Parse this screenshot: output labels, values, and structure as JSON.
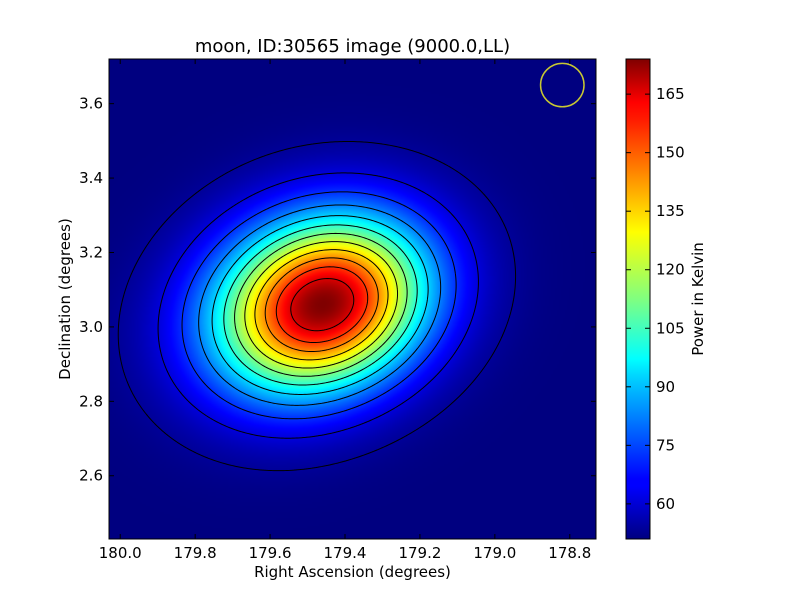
{
  "chart_data": {
    "type": "heatmap",
    "title": "moon, ID:30565 image (9000.0,LL)",
    "xlabel": "Right Ascension (degrees)",
    "ylabel": "Declination (degrees)",
    "colorbar_label": "Power in Kelvin",
    "x_range": [
      180.03,
      178.73
    ],
    "y_range": [
      2.43,
      3.72
    ],
    "x_ticks": [
      {
        "value": 180.0,
        "label": "180.0"
      },
      {
        "value": 179.8,
        "label": "179.8"
      },
      {
        "value": 179.6,
        "label": "179.6"
      },
      {
        "value": 179.4,
        "label": "179.4"
      },
      {
        "value": 179.2,
        "label": "179.2"
      },
      {
        "value": 179.0,
        "label": "179.0"
      },
      {
        "value": 178.8,
        "label": "178.8"
      }
    ],
    "y_ticks": [
      {
        "value": 2.6,
        "label": "2.6"
      },
      {
        "value": 2.8,
        "label": "2.8"
      },
      {
        "value": 3.0,
        "label": "3.0"
      },
      {
        "value": 3.2,
        "label": "3.2"
      },
      {
        "value": 3.4,
        "label": "3.4"
      },
      {
        "value": 3.6,
        "label": "3.6"
      }
    ],
    "colorbar_range": [
      51,
      174
    ],
    "colorbar_ticks": [
      {
        "value": 60,
        "label": "60"
      },
      {
        "value": 75,
        "label": "75"
      },
      {
        "value": 90,
        "label": "90"
      },
      {
        "value": 105,
        "label": "105"
      },
      {
        "value": 120,
        "label": "120"
      },
      {
        "value": 135,
        "label": "135"
      },
      {
        "value": 150,
        "label": "150"
      },
      {
        "value": 165,
        "label": "165"
      }
    ],
    "colormap": "jet",
    "source": {
      "center_ra": 179.46,
      "center_dec": 3.06,
      "peak": 174,
      "background": 51,
      "sigma_major_deg": 0.2,
      "sigma_minor_deg": 0.155,
      "angle_deg": 22
    },
    "contour_levels": [
      54,
      62,
      72,
      82,
      92,
      102,
      112,
      122,
      132,
      142,
      152,
      163
    ],
    "beam": {
      "ra": 178.82,
      "dec": 3.65,
      "radius_deg": 0.058,
      "color": "#c8c832"
    },
    "contour_color": "#000000"
  }
}
